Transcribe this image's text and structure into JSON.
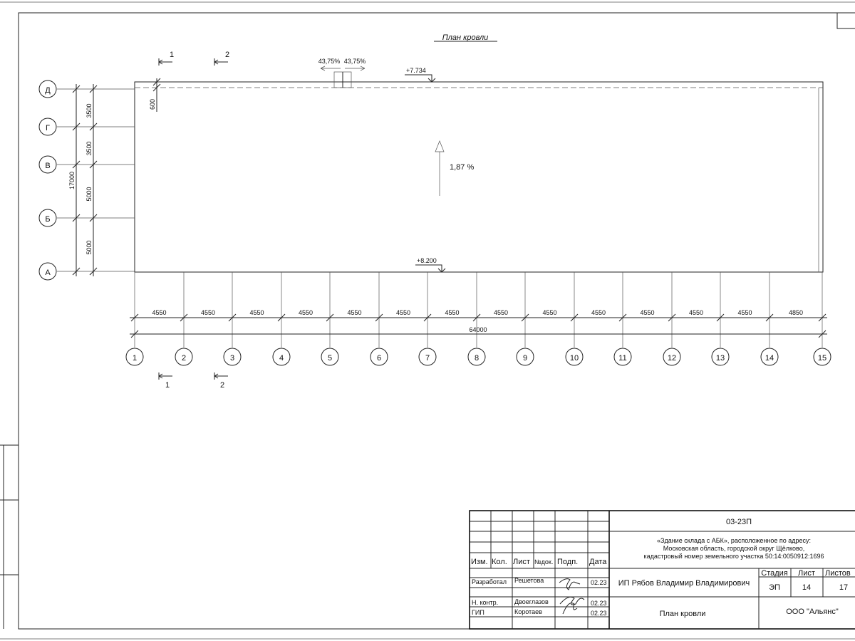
{
  "title": "План кровли",
  "slope": "1,87 %",
  "elevations": {
    "top": "+7.734",
    "bottom": "+8.200"
  },
  "parapet_slopes": [
    "43,75%",
    "43,75%"
  ],
  "parapet_offset": "600",
  "sections": [
    "1",
    "2"
  ],
  "rows": [
    {
      "label": "Д",
      "dim": "3500"
    },
    {
      "label": "Г",
      "dim": "3500"
    },
    {
      "label": "В",
      "dim": "5000"
    },
    {
      "label": "Б",
      "dim": "5000"
    },
    {
      "label": "А",
      "dim": ""
    }
  ],
  "rows_total": "17000",
  "columns": [
    "1",
    "2",
    "3",
    "4",
    "5",
    "6",
    "7",
    "8",
    "9",
    "10",
    "11",
    "12",
    "13",
    "14",
    "15"
  ],
  "column_dims": [
    "4550",
    "4550",
    "4550",
    "4550",
    "4550",
    "4550",
    "4550",
    "4550",
    "4550",
    "4550",
    "4550",
    "4550",
    "4550",
    "4850"
  ],
  "columns_total": "64000",
  "stamp": {
    "code": "03-23П",
    "project_lines": [
      "«Здание склада с АБК», расположенное по адресу:",
      "Московская область, городской округ Щёлково,",
      "кадастровый номер земельного участка 50:14:0050912:1696"
    ],
    "headers": [
      "Изм.",
      "Кол.",
      "Лист",
      "№док.",
      "Подп.",
      "Дата"
    ],
    "people": [
      {
        "role": "Разработал",
        "name": "Решетова",
        "date": "02.23"
      },
      {
        "role": "Н. контр.",
        "name": "Двоеглазов",
        "date": "02.23"
      },
      {
        "role": "ГИП",
        "name": "Коротаев",
        "date": "02.23"
      }
    ],
    "author": "ИП Рябов Владимир Владимирович",
    "stage_label": "Стадия",
    "sheet_label": "Лист",
    "sheets_label": "Листов",
    "stage": "ЭП",
    "sheet": "14",
    "sheets": "17",
    "sheet_title": "План кровли",
    "company": "ООО \"Альянс\""
  }
}
